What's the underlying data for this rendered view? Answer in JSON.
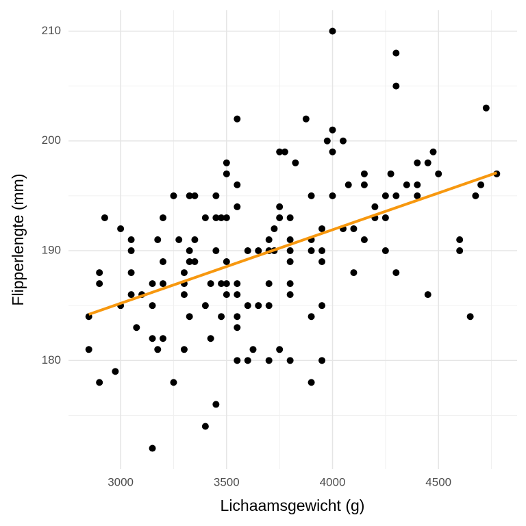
{
  "chart_data": {
    "type": "scatter",
    "x_label": "Lichaamsgewicht (g)",
    "y_label": "Flipperlengte (mm)",
    "xlim": [
      2754,
      4871
    ],
    "ylim": [
      170.1,
      211.9
    ],
    "xticks": [
      3000,
      3500,
      4000,
      4500
    ],
    "yticks": [
      180,
      190,
      200,
      210
    ],
    "grid": true,
    "minor_grid": true,
    "series": [
      {
        "type": "scatter",
        "color": "#000000",
        "x": [
          2850,
          2850,
          2900,
          2900,
          2900,
          2925,
          2975,
          3000,
          3000,
          3050,
          3050,
          3050,
          3050,
          3075,
          3100,
          3150,
          3150,
          3150,
          3150,
          3175,
          3175,
          3200,
          3200,
          3200,
          3200,
          3250,
          3250,
          3275,
          3300,
          3300,
          3300,
          3300,
          3325,
          3325,
          3325,
          3325,
          3350,
          3350,
          3350,
          3400,
          3400,
          3400,
          3425,
          3425,
          3450,
          3450,
          3450,
          3450,
          3475,
          3475,
          3475,
          3500,
          3500,
          3500,
          3500,
          3500,
          3500,
          3550,
          3550,
          3550,
          3550,
          3550,
          3550,
          3550,
          3550,
          3600,
          3600,
          3600,
          3625,
          3650,
          3650,
          3700,
          3700,
          3700,
          3700,
          3700,
          3725,
          3725,
          3750,
          3750,
          3750,
          3750,
          3775,
          3825,
          3800,
          3800,
          3800,
          3800,
          3800,
          3800,
          3800,
          3875,
          3900,
          3900,
          3900,
          3900,
          3900,
          3950,
          3950,
          3950,
          3950,
          3950,
          3975,
          4000,
          4000,
          4000,
          4000,
          4050,
          4050,
          4075,
          4100,
          4100,
          4150,
          4150,
          4150,
          4200,
          4200,
          4250,
          4250,
          4250,
          4275,
          4300,
          4300,
          4300,
          4300,
          4350,
          4400,
          4400,
          4400,
          4450,
          4450,
          4475,
          4500,
          4600,
          4600,
          4650,
          4675,
          4700,
          4725,
          4775
        ],
        "values": [
          184,
          181,
          188,
          187,
          178,
          193,
          179,
          192,
          185,
          191,
          190,
          188,
          186,
          183,
          186,
          187,
          185,
          182,
          172,
          191,
          181,
          193,
          189,
          187,
          182,
          195,
          178,
          191,
          188,
          187,
          186,
          181,
          195,
          190,
          189,
          184,
          195,
          191,
          189,
          193,
          185,
          174,
          187,
          182,
          195,
          193,
          190,
          176,
          193,
          187,
          184,
          198,
          197,
          193,
          189,
          187,
          186,
          202,
          196,
          194,
          187,
          186,
          184,
          183,
          180,
          190,
          185,
          180,
          181,
          190,
          185,
          190,
          191,
          187,
          185,
          180,
          192,
          190,
          199,
          194,
          193,
          181,
          199,
          198,
          193,
          191,
          190,
          189,
          187,
          186,
          180,
          202,
          195,
          191,
          190,
          184,
          178,
          192,
          190,
          189,
          185,
          180,
          200,
          210,
          201,
          199,
          195,
          200,
          192,
          196,
          192,
          188,
          197,
          196,
          191,
          194,
          193,
          195,
          193,
          190,
          197,
          208,
          205,
          195,
          188,
          196,
          198,
          196,
          195,
          198,
          186,
          199,
          197,
          191,
          190,
          184,
          195,
          196,
          203,
          197
        ]
      },
      {
        "type": "line",
        "color": "#f7980f",
        "x": [
          2850,
          4775
        ],
        "values": [
          184.2,
          197.1
        ]
      }
    ]
  }
}
